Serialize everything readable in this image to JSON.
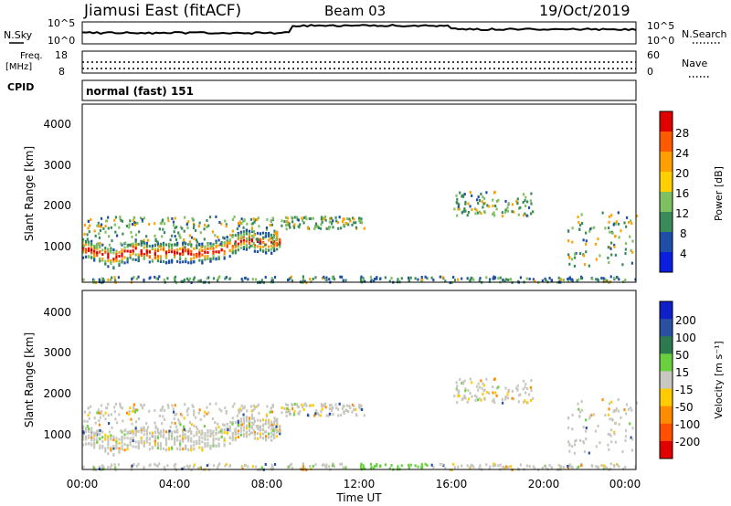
{
  "header": {
    "station": "Jiamusi East (fitACF)",
    "beam": "Beam 03",
    "date": "19/Oct/2019"
  },
  "noise_panel": {
    "left_label": "N.Sky",
    "right_label": "N.Search",
    "left_ticks": [
      "10^5",
      "10^0"
    ],
    "right_ticks": [
      "10^5",
      "10^0"
    ]
  },
  "freq_panel": {
    "left_label_1": "Freq.",
    "left_label_2": "[MHz]",
    "left_ticks": [
      "18",
      "8"
    ],
    "right_label": "Nave",
    "right_ticks": [
      "60",
      "0"
    ],
    "cpid_label": "CPID"
  },
  "mode_text": "normal (fast) 151",
  "axes": {
    "ylabel": "Slant Range [km]",
    "yticks": [
      "4000",
      "3000",
      "2000",
      "1000"
    ],
    "xticks": [
      "00:00",
      "04:00",
      "08:00",
      "12:00",
      "16:00",
      "20:00",
      "00:00"
    ],
    "xlabel": "Time UT"
  },
  "power_colorbar": {
    "label": "Power [dB]",
    "ticks": [
      "28",
      "24",
      "20",
      "16",
      "12",
      "8",
      "4"
    ],
    "colors": [
      "#e00000",
      "#ff5a00",
      "#ffa000",
      "#ffd000",
      "#7fc060",
      "#3a8a5a",
      "#1e4ea8",
      "#0a1ee0"
    ]
  },
  "velocity_colorbar": {
    "label": "Velocity [m s⁻¹]",
    "ticks": [
      "200",
      "100",
      "50",
      "15",
      "-15",
      "-50",
      "-100",
      "-200"
    ],
    "colors": [
      "#1020c8",
      "#2a50a0",
      "#2e7a50",
      "#6ad040",
      "#c8c8c0",
      "#ffcc00",
      "#ff8c00",
      "#ff5000",
      "#e00000"
    ]
  },
  "chart_data": {
    "type": "heatmap",
    "xlim_hours": [
      0,
      24
    ],
    "ylim_km": [
      180,
      4500
    ],
    "power_tracks": [
      {
        "t": [
          0,
          1.3,
          2.2,
          3.0,
          4.0,
          5.0,
          6.0,
          7.0,
          8.0,
          8.6
        ],
        "r": [
          1050,
          800,
          1000,
          900,
          950,
          900,
          1000,
          1250,
          1150,
          1200
        ]
      }
    ],
    "scatter_regions": [
      {
        "t0": 0.0,
        "t1": 8.6,
        "r0": 1050,
        "r1": 1800
      },
      {
        "t0": 8.6,
        "t1": 12.2,
        "r0": 1500,
        "r1": 1800
      },
      {
        "t0": 16.0,
        "t1": 19.5,
        "r0": 1800,
        "r1": 2400
      },
      {
        "t0": 21.0,
        "t1": 24.0,
        "r0": 600,
        "r1": 1900
      }
    ]
  }
}
